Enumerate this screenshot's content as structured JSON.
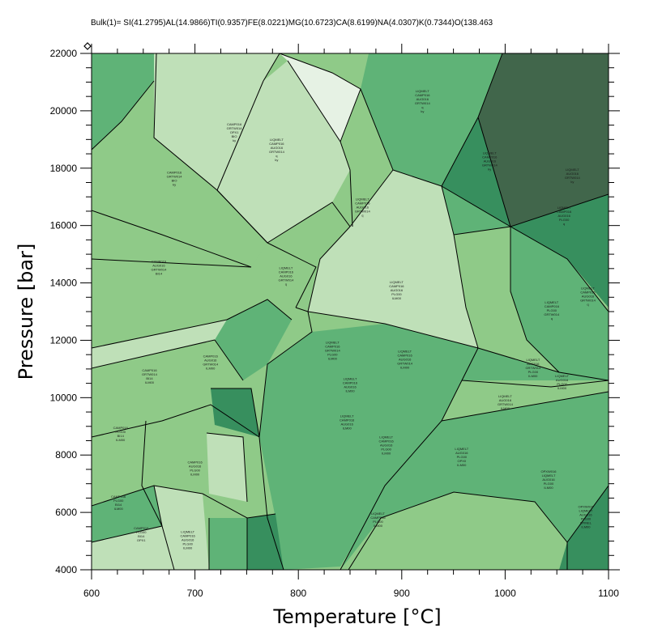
{
  "chart_data": {
    "type": "phase-diagram",
    "title": "Bulk(1)= SI(41.2795)AL(14.9866)TI(0.9357)FE(8.0221)MG(10.6723)CA(8.6199)NA(4.0307)K(0.7344)O(138.463",
    "xlabel": "Temperature [°C]",
    "ylabel": "Pressure [bar]",
    "xlim": [
      600,
      1100
    ],
    "ylim": [
      4000,
      22000
    ],
    "x_ticks": [
      600,
      700,
      800,
      900,
      1000,
      1100
    ],
    "y_ticks": [
      4000,
      6000,
      8000,
      10000,
      12000,
      14000,
      16000,
      18000,
      20000,
      22000
    ],
    "grid": false,
    "colors": {
      "lightest": "#e6f2e4",
      "light": "#bfe0b8",
      "mid_light": "#8fca88",
      "mid": "#5fb377",
      "mid_dark": "#3f9a67",
      "dark": "#378f5e",
      "darkest": "#41664b"
    },
    "fields": [
      {
        "label": "LIQMELT CAMP016 AUG016 GRTW014 q ky",
        "x": 920,
        "y": 20300,
        "color": "#5fb377"
      },
      {
        "label": "CAMP016 GRTW014 OPX1 BIO ky",
        "x": 738,
        "y": 19200,
        "color": "#bfe0b8"
      },
      {
        "label": "LIQMELT CAMP016 AUG016 GRTW014 q ky",
        "x": 779,
        "y": 18600,
        "color": "#bfe0b8"
      },
      {
        "label": "LIQMELT CAMP016 AUG016 GRTW014 ky",
        "x": 985,
        "y": 18200,
        "color": "#5fb377"
      },
      {
        "label": "LIQMELT CAMP016 AUG016 GRTW014 q",
        "x": 862,
        "y": 16600,
        "color": "#bfe0b8"
      },
      {
        "label": "CAMP016 GRTW014 BIO ky",
        "x": 680,
        "y": 17600,
        "color": "#8fca88"
      },
      {
        "label": "LIQMELT AUG016 GRTW014 ky",
        "x": 1065,
        "y": 17700,
        "color": "#41664b"
      },
      {
        "label": "LIQMELT CAMP016 AUG016 PLG00 q",
        "x": 1057,
        "y": 16300,
        "color": "#378f5e"
      },
      {
        "label": "LIQMELT CAMP016 AUG016 GRTW014 q",
        "x": 788,
        "y": 14200,
        "color": "#8fca88"
      },
      {
        "label": "LIQMELT CAMP016 AUG016 PLG00 ILM00",
        "x": 895,
        "y": 13700,
        "color": "#bfe0b8"
      },
      {
        "label": "LIQMELT CAMP016 AUG016 GRTW014 q",
        "x": 1080,
        "y": 13500,
        "color": "#5fb377"
      },
      {
        "label": "CAMP016 AUG016 GRTW014 BI14",
        "x": 665,
        "y": 14500,
        "color": "#8fca88"
      },
      {
        "label": "LIQMELT CAMP016 PLG00 GRTW014 q",
        "x": 1045,
        "y": 13000,
        "color": "#8fca88"
      },
      {
        "label": "LIQMELT AUG016 PLG00 ILM00",
        "x": 1055,
        "y": 10500,
        "color": "#5fb377"
      },
      {
        "label": "LIQMELT AUG016 GRTW014 ILM00",
        "x": 1000,
        "y": 9800,
        "color": "#8fca88"
      },
      {
        "label": "LIQMELT AUG016 GRTW014 PLG00 ILM00",
        "x": 1027,
        "y": 11000,
        "color": "#8fca88"
      },
      {
        "label": "LIQMELT CAMP016 AUG016 GRTW014 ILM00",
        "x": 903,
        "y": 11300,
        "color": "#5fb377"
      },
      {
        "label": "LIQMELT CAMP016 AUG016 ILM00",
        "x": 850,
        "y": 10400,
        "color": "#8fca88"
      },
      {
        "label": "LIQMELT CAMP016 AUG016 ILM00",
        "x": 847,
        "y": 9100,
        "color": "#5fb377"
      },
      {
        "label": "LIQMELT CAMP016 AUG016 PLG00 ILM00",
        "x": 885,
        "y": 8300,
        "color": "#5fb377"
      },
      {
        "label": "LIQMELT AUG016 PLG00 OPX0 ILM00",
        "x": 958,
        "y": 7900,
        "color": "#5fb377"
      },
      {
        "label": "OPXW016 LIQMELT AUG016 PLG00 ILM00",
        "x": 1042,
        "y": 7100,
        "color": "#5fb377"
      },
      {
        "label": "OPXW016 LIQMELT AUG016 PLG00 SPINEL ILM00",
        "x": 1078,
        "y": 5800,
        "color": "#378f5e"
      },
      {
        "label": "LIQMELT CAMP016 PLG00 ILM00",
        "x": 877,
        "y": 5700,
        "color": "#8fca88"
      },
      {
        "label": "CAMP016 AUG016 PLG00 ILM00",
        "x": 700,
        "y": 7500,
        "color": "#8fca88"
      },
      {
        "label": "CAMP016 PLG00 BI14 ILM00",
        "x": 626,
        "y": 6300,
        "color": "#5fb377"
      },
      {
        "label": "LIQMELT CAMP016 AUG016 PLG00 ILM00",
        "x": 693,
        "y": 5000,
        "color": "#bfe0b8"
      },
      {
        "label": "CAMP016 PLG00 BI14 OPX1",
        "x": 648,
        "y": 5200,
        "color": "#8fca88"
      },
      {
        "label": "CAMP016 GRTW014 BI14 ILM00",
        "x": 656,
        "y": 10700,
        "color": "#bfe0b8"
      },
      {
        "label": "CAMP016 AUG016 GRTW014 ILM00",
        "x": 715,
        "y": 11200,
        "color": "#8fca88"
      },
      {
        "label": "CAMP016 PLG00 BI14 ILM00",
        "x": 628,
        "y": 8700,
        "color": "#8fca88"
      },
      {
        "label": "LIQMELT CAMP016 GRTW014 PLG00 ILM00",
        "x": 833,
        "y": 11600,
        "color": "#5fb377"
      }
    ]
  }
}
